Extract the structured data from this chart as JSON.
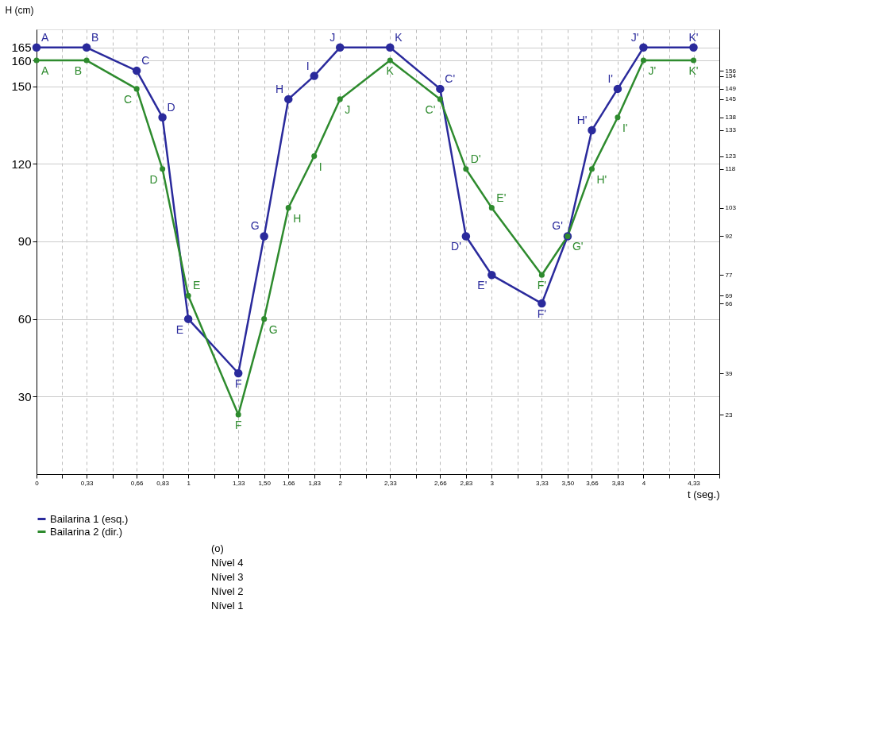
{
  "chart_data": {
    "type": "line",
    "xlabel": "t (seg.)",
    "ylabel": "H (cm)",
    "x": [
      0,
      0.33,
      0.66,
      0.83,
      1,
      1.33,
      1.5,
      1.66,
      1.83,
      2,
      2.33,
      2.66,
      2.83,
      3,
      3.33,
      3.5,
      3.66,
      3.83,
      4,
      4.33
    ],
    "series": [
      {
        "name": "Bailarina 1 (esq.)",
        "color": "#2a2a9c",
        "values": [
          165,
          165,
          156,
          138,
          60,
          39,
          92,
          145,
          154,
          165,
          165,
          149,
          92,
          77,
          66,
          92,
          133,
          149,
          165,
          165
        ]
      },
      {
        "name": "Bailarina 2 (dir.)",
        "color": "#2e8b2e",
        "values": [
          160,
          160,
          149,
          118,
          69,
          23,
          60,
          103,
          123,
          145,
          160,
          145,
          118,
          103,
          77,
          92,
          118,
          138,
          160,
          160
        ]
      }
    ],
    "xlim": [
      0,
      4.5
    ],
    "xticks": [
      0,
      {
        "value": 0.17,
        "label": null
      },
      {
        "value": 0.33,
        "label": "0,33"
      },
      {
        "value": 0.5,
        "label": null
      },
      {
        "value": 0.66,
        "label": "0,66"
      },
      {
        "value": 0.83,
        "label": "0,83"
      },
      1,
      {
        "value": 1.17,
        "label": null
      },
      {
        "value": 1.33,
        "label": "1,33"
      },
      {
        "value": 1.5,
        "label": "1,50"
      },
      {
        "value": 1.66,
        "label": "1,66"
      },
      {
        "value": 1.83,
        "label": "1,83"
      },
      2,
      {
        "value": 2.17,
        "label": null
      },
      {
        "value": 2.33,
        "label": "2,33"
      },
      {
        "value": 2.5,
        "label": null
      },
      {
        "value": 2.66,
        "label": "2,66"
      },
      {
        "value": 2.83,
        "label": "2,83"
      },
      3,
      {
        "value": 3.17,
        "label": null
      },
      {
        "value": 3.33,
        "label": "3,33"
      },
      {
        "value": 3.5,
        "label": "3,50"
      },
      {
        "value": 3.66,
        "label": "3,66"
      },
      {
        "value": 3.83,
        "label": "3,83"
      },
      4,
      {
        "value": 4.17,
        "label": null
      },
      {
        "value": 4.33,
        "label": "4,33"
      },
      {
        "value": 4.5,
        "label": null
      }
    ],
    "ylim": [
      0,
      172
    ],
    "yticks": [
      30,
      60,
      90,
      120,
      150,
      160,
      165
    ],
    "y2lim": [
      0,
      172
    ],
    "y2ticks": [
      23,
      39,
      66,
      69,
      77,
      92,
      103,
      118,
      123,
      133,
      138,
      145,
      149,
      154,
      156
    ],
    "grid": true,
    "legend": "bottom left",
    "marker": "circle",
    "line_style": "solid",
    "annotations": [
      {
        "text": "A",
        "x": 0,
        "y": 165
      },
      {
        "text": "B",
        "x": 0.33,
        "y": 165
      },
      {
        "text": "C",
        "x": 0.66,
        "y": 156
      },
      {
        "text": "D",
        "x": 0.83,
        "y": 138
      },
      {
        "text": "E",
        "x": 1,
        "y": 60
      },
      {
        "text": "F",
        "x": 1.33,
        "y": 39
      },
      {
        "text": "G",
        "x": 1.5,
        "y": 92
      },
      {
        "text": "H",
        "x": 1.66,
        "y": 145
      },
      {
        "text": "I",
        "x": 1.83,
        "y": 154
      },
      {
        "text": "J",
        "x": 2,
        "y": 165
      },
      {
        "text": "K",
        "x": 2.33,
        "y": 165
      },
      {
        "text": "C'",
        "x": 2.66,
        "y": 149
      },
      {
        "text": "D'",
        "x": 2.83,
        "y": 92
      },
      {
        "text": "E'",
        "x": 3,
        "y": 77
      },
      {
        "text": "F'",
        "x": 3.33,
        "y": 66
      },
      {
        "text": "G'",
        "x": 3.5,
        "y": 92
      },
      {
        "text": "H'",
        "x": 3.66,
        "y": 133
      },
      {
        "text": "I'",
        "x": 3.83,
        "y": 149
      },
      {
        "text": "J'",
        "x": 4,
        "y": 165
      },
      {
        "text": "K'",
        "x": 4.33,
        "y": 165
      },
      {
        "text": "A",
        "x": 0,
        "y": 160
      },
      {
        "text": "B",
        "x": 0.33,
        "y": 160
      },
      {
        "text": "C",
        "x": 0.66,
        "y": 149
      },
      {
        "text": "D",
        "x": 0.83,
        "y": 118
      },
      {
        "text": "E",
        "x": 1,
        "y": 69
      },
      {
        "text": "F",
        "x": 1.33,
        "y": 23
      },
      {
        "text": "G",
        "x": 1.5,
        "y": 60
      },
      {
        "text": "H",
        "x": 1.66,
        "y": 103
      },
      {
        "text": "I",
        "x": 1.83,
        "y": 123
      },
      {
        "text": "J",
        "x": 2,
        "y": 145
      },
      {
        "text": "K",
        "x": 2.33,
        "y": 160
      },
      {
        "text": "C'",
        "x": 2.66,
        "y": 145
      },
      {
        "text": "D'",
        "x": 2.83,
        "y": 118
      },
      {
        "text": "E'",
        "x": 3,
        "y": 103
      },
      {
        "text": "F'",
        "x": 3.33,
        "y": 77
      },
      {
        "text": "G'",
        "x": 3.5,
        "y": 92
      },
      {
        "text": "H'",
        "x": 3.66,
        "y": 118
      },
      {
        "text": "I'",
        "x": 3.83,
        "y": 138
      },
      {
        "text": "J'",
        "x": 4,
        "y": 160
      },
      {
        "text": "K'",
        "x": 4.33,
        "y": 160
      },
      "(o)",
      "Nível 4",
      "Nível 3",
      "Nível 2",
      "Nível 1"
    ]
  }
}
